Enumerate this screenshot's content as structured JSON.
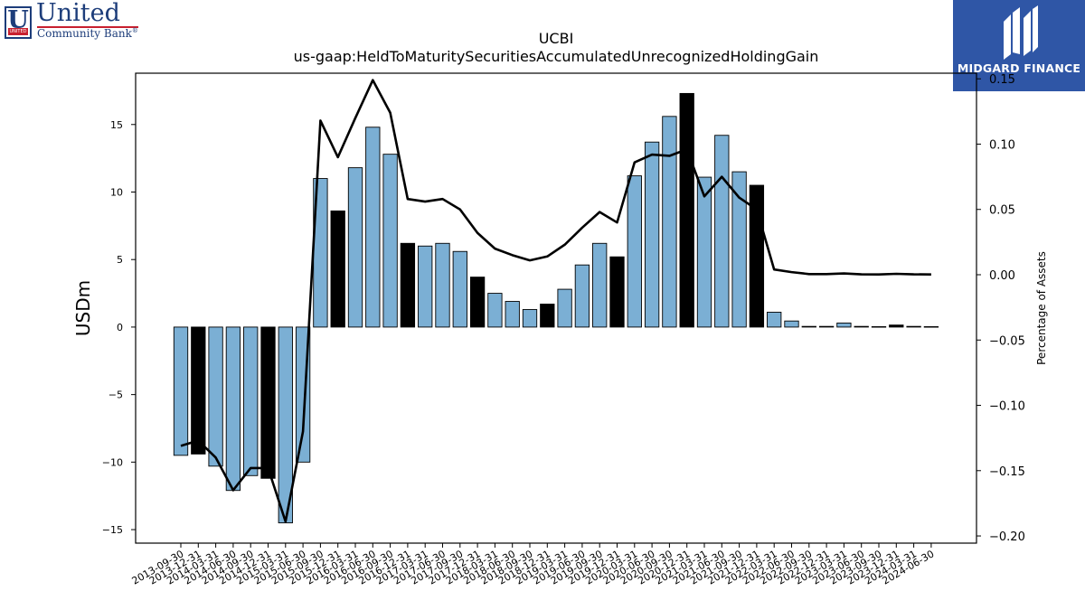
{
  "logos": {
    "left": {
      "line1": "United",
      "line2": "Community Bank",
      "mark_letter": "U",
      "mark_band": "UNITED",
      "registered": "®"
    },
    "right": {
      "text": "MIDGARD FINANCE",
      "bg_color": "#2f56a6"
    }
  },
  "chart_data": {
    "type": "bar",
    "title": "UCBI",
    "subtitle": "us-gaap:HeldToMaturitySecuritiesAccumulatedUnrecognizedHoldingGain",
    "ylabel": "USDm",
    "ylabel_right": "Percentage of Assets",
    "ylim": [
      -16.0,
      18.8
    ],
    "ylim_right": [
      -0.2055,
      0.1543
    ],
    "yticks": [
      -15,
      -10,
      -5,
      0,
      5,
      10,
      15
    ],
    "yticks_right": [
      -0.2,
      -0.15,
      -0.1,
      -0.05,
      0.0,
      0.05,
      0.1,
      0.15
    ],
    "categories": [
      "2013-09-30",
      "2013-12-31",
      "2014-03-31",
      "2014-06-30",
      "2014-09-30",
      "2014-12-31",
      "2015-03-31",
      "2015-06-30",
      "2015-09-30",
      "2015-12-31",
      "2016-03-31",
      "2016-06-30",
      "2016-09-30",
      "2016-12-31",
      "2017-03-31",
      "2017-06-30",
      "2017-09-30",
      "2017-12-31",
      "2018-03-31",
      "2018-06-30",
      "2018-09-30",
      "2018-12-31",
      "2019-03-31",
      "2019-06-30",
      "2019-09-30",
      "2019-12-31",
      "2020-03-31",
      "2020-06-30",
      "2020-09-30",
      "2020-12-31",
      "2021-03-31",
      "2021-06-30",
      "2021-09-30",
      "2021-12-31",
      "2022-03-31",
      "2022-06-30",
      "2022-09-30",
      "2022-12-31",
      "2023-03-31",
      "2023-06-30",
      "2023-09-30",
      "2023-12-31",
      "2024-03-31",
      "2024-06-30"
    ],
    "series": [
      {
        "values": [
          -9.5,
          -9.4,
          -10.3,
          -12.1,
          -11.0,
          -11.2,
          -14.5,
          -10.0,
          11.0,
          8.6,
          11.8,
          14.8,
          12.8,
          6.2,
          6.0,
          6.2,
          5.6,
          3.7,
          2.5,
          1.9,
          1.3,
          1.7,
          2.8,
          4.6,
          6.2,
          5.2,
          11.2,
          13.7,
          15.6,
          17.3,
          11.1,
          14.2,
          11.5,
          10.5,
          1.1,
          0.45,
          0.05,
          0.05,
          0.3,
          0.05,
          0.03,
          0.15,
          0.05,
          0.03
        ],
        "highlight": [
          false,
          true,
          false,
          false,
          false,
          true,
          false,
          false,
          false,
          true,
          false,
          false,
          false,
          true,
          false,
          false,
          false,
          true,
          false,
          false,
          false,
          true,
          false,
          false,
          false,
          true,
          false,
          false,
          false,
          true,
          false,
          false,
          false,
          true,
          false,
          false,
          false,
          true,
          false,
          false,
          false,
          true,
          false,
          false
        ]
      },
      {
        "axis": "right",
        "type": "line",
        "values": [
          -0.131,
          -0.127,
          -0.14,
          -0.165,
          -0.148,
          -0.148,
          -0.189,
          -0.12,
          0.118,
          0.09,
          0.12,
          0.149,
          0.124,
          0.058,
          0.056,
          0.058,
          0.05,
          0.032,
          0.02,
          0.015,
          0.011,
          0.014,
          0.023,
          0.036,
          0.048,
          0.04,
          0.086,
          0.092,
          0.091,
          0.096,
          0.06,
          0.075,
          0.059,
          0.05,
          0.004,
          0.002,
          0.0005,
          0.0005,
          0.001,
          0.0003,
          0.0002,
          0.0007,
          0.0003,
          0.0002
        ]
      }
    ],
    "colors": {
      "bar": "#7bafd4",
      "bar_highlight": "#000000",
      "line": "#000000"
    }
  }
}
